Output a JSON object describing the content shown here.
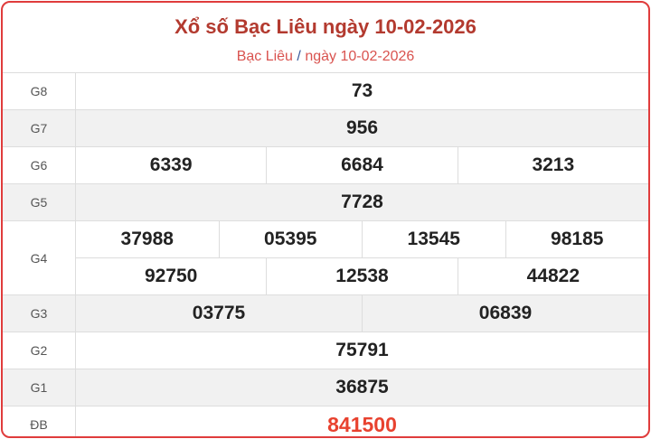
{
  "header": {
    "title": "Xổ số Bạc Liêu ngày 10-02-2026",
    "breadcrumb_province": "Bạc Liêu",
    "breadcrumb_separator": "/",
    "breadcrumb_date": "ngày 10-02-2026"
  },
  "colors": {
    "accent": "#e03c3c",
    "title": "#b33a2f",
    "special": "#e8422f"
  },
  "prizes": [
    {
      "label": "G8",
      "lines": [
        [
          "73"
        ]
      ]
    },
    {
      "label": "G7",
      "lines": [
        [
          "956"
        ]
      ]
    },
    {
      "label": "G6",
      "lines": [
        [
          "6339",
          "6684",
          "3213"
        ]
      ]
    },
    {
      "label": "G5",
      "lines": [
        [
          "7728"
        ]
      ]
    },
    {
      "label": "G4",
      "lines": [
        [
          "37988",
          "05395",
          "13545",
          "98185"
        ],
        [
          "92750",
          "12538",
          "44822"
        ]
      ]
    },
    {
      "label": "G3",
      "lines": [
        [
          "03775",
          "06839"
        ]
      ]
    },
    {
      "label": "G2",
      "lines": [
        [
          "75791"
        ]
      ]
    },
    {
      "label": "G1",
      "lines": [
        [
          "36875"
        ]
      ]
    },
    {
      "label": "ĐB",
      "lines": [
        [
          "841500"
        ]
      ]
    }
  ]
}
